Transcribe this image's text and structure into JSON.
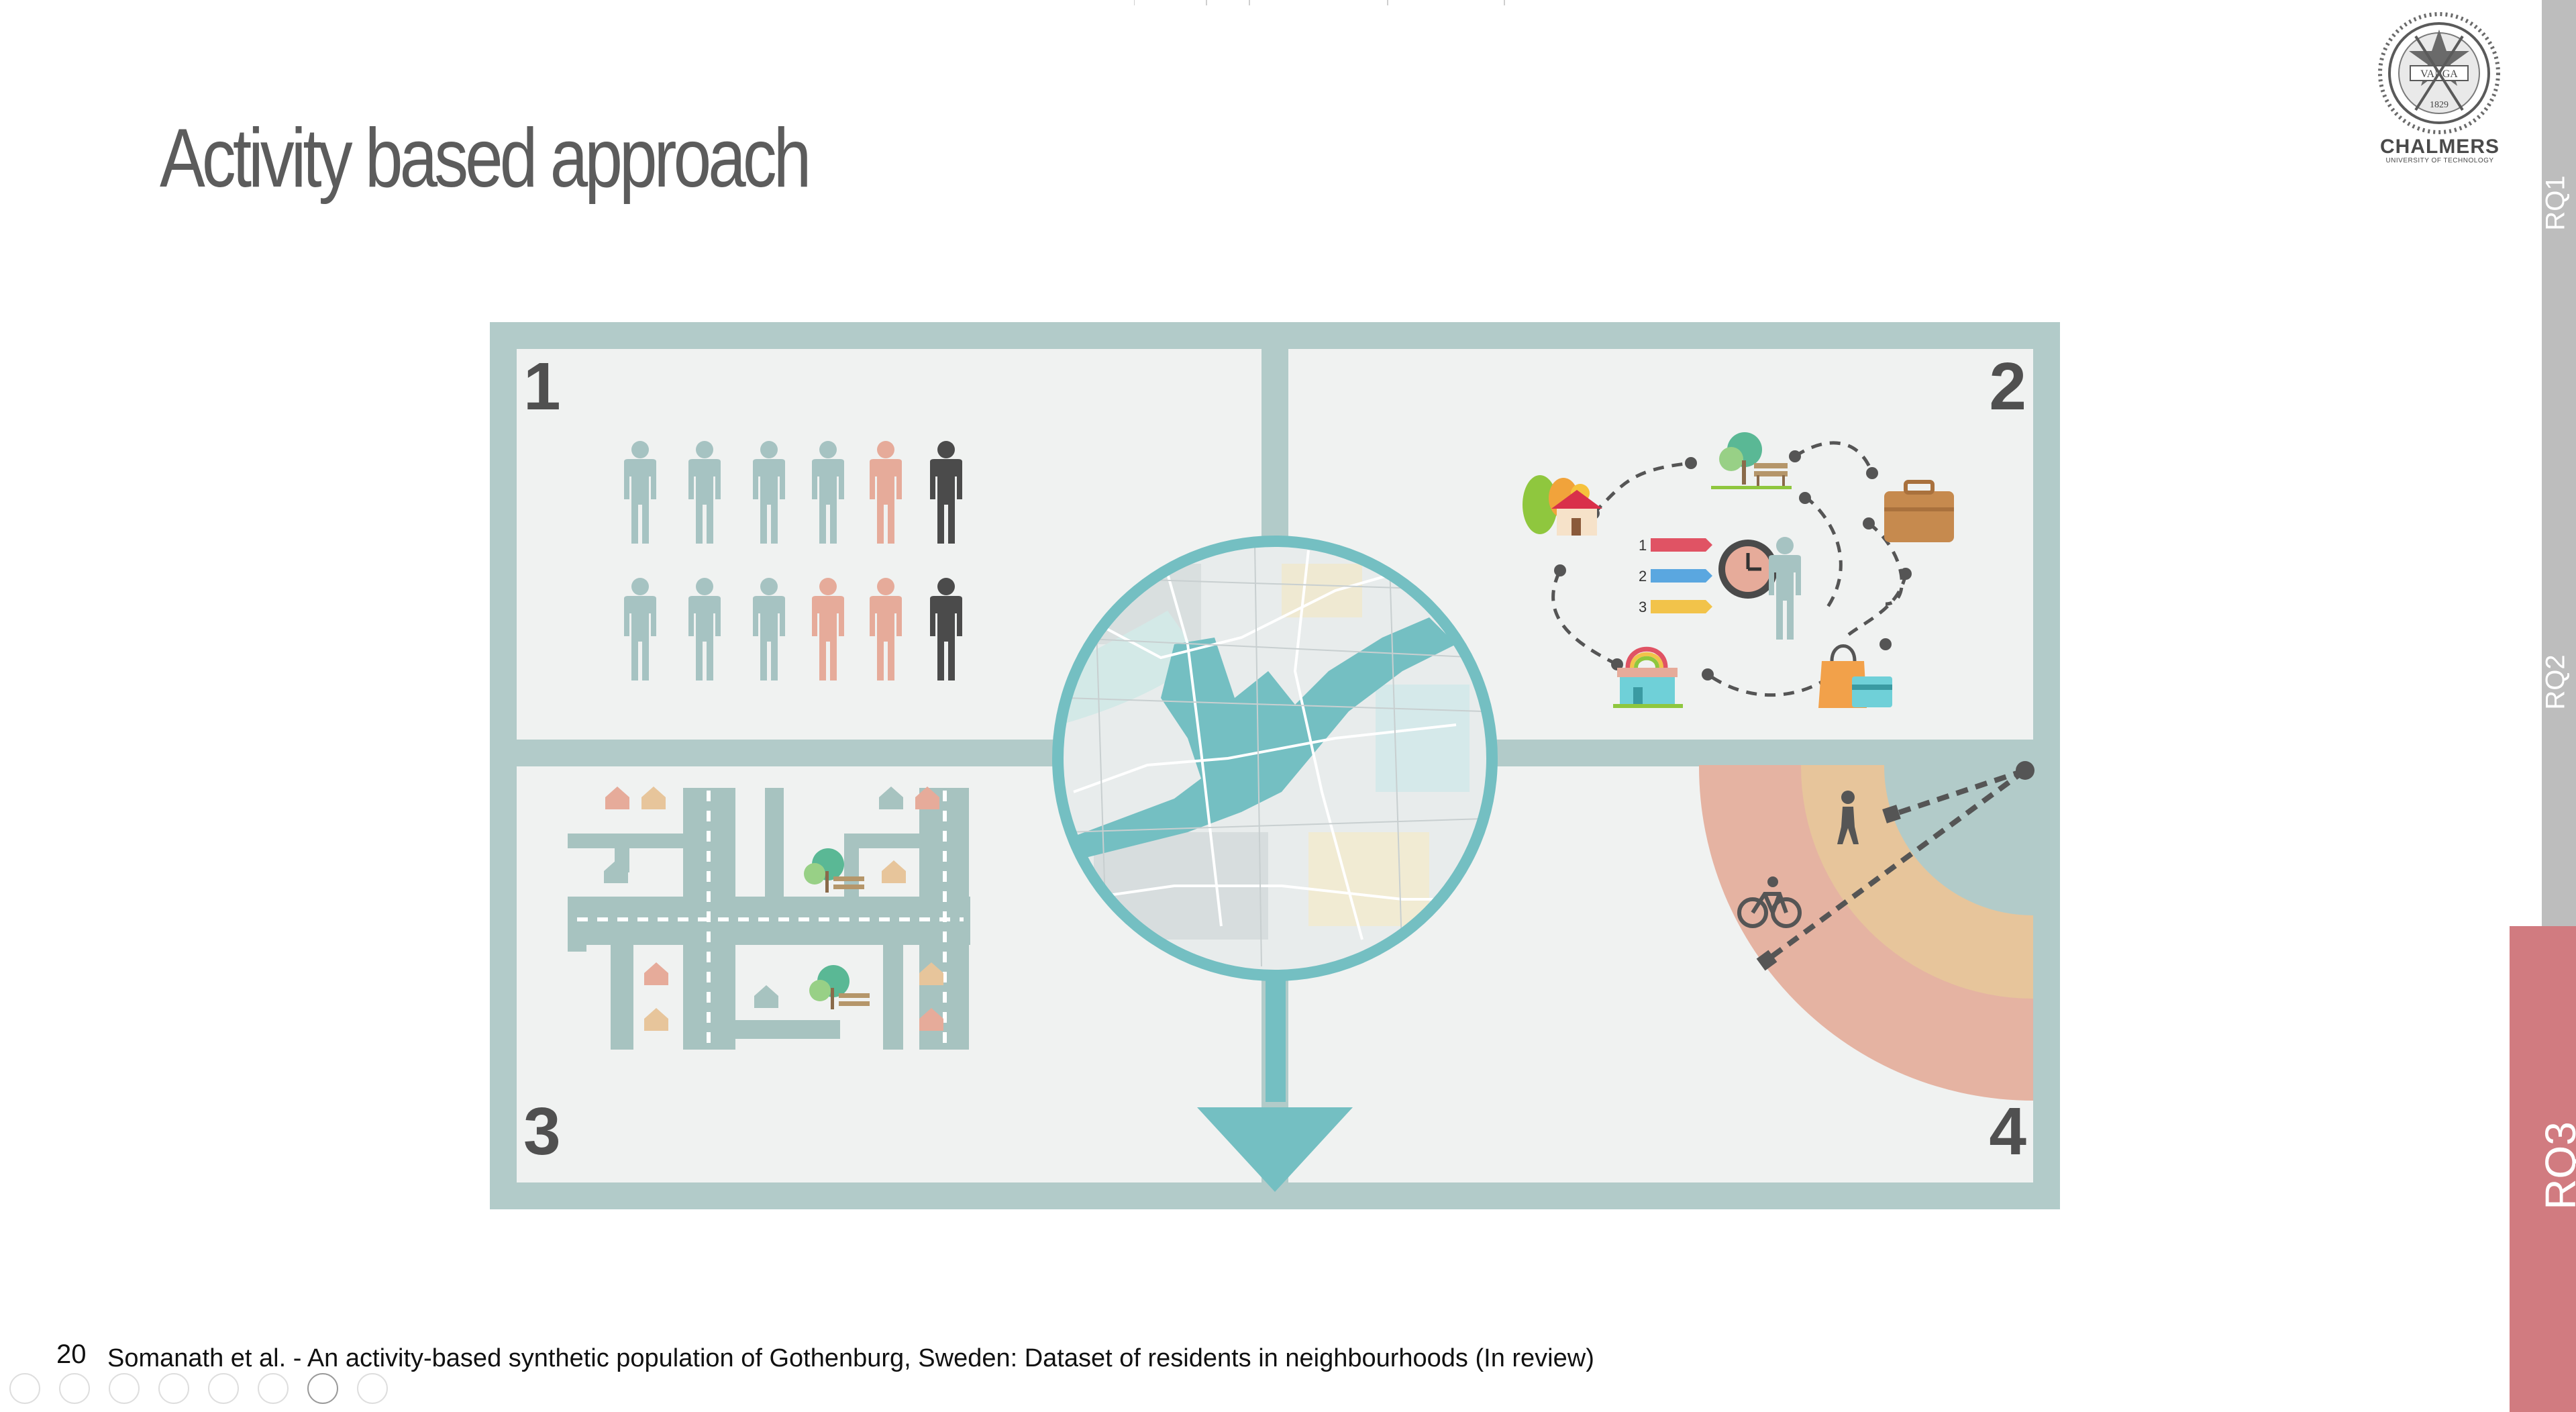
{
  "slide": {
    "title": "Activity based approach",
    "number": "20",
    "citation": "Somanath et al. - An activity-based synthetic population of Gothenburg, Sweden: Dataset of residents in neighbourhoods (In review)"
  },
  "logo": {
    "name": "CHALMERS",
    "subtitle": "UNIVERSITY OF TECHNOLOGY",
    "seal_text": "VANGA",
    "seal_year": "1829"
  },
  "sidebar": {
    "items": [
      {
        "label": "RQ1",
        "active": false
      },
      {
        "label": "RQ2",
        "active": false
      },
      {
        "label": "RQ3",
        "active": true
      }
    ],
    "colors": {
      "inactive": "#bdbdbd",
      "active": "#d17b80"
    }
  },
  "figure": {
    "panels": [
      {
        "number": "1",
        "content": "people-icons"
      },
      {
        "number": "2",
        "content": "activity-chain"
      },
      {
        "number": "3",
        "content": "street-network"
      },
      {
        "number": "4",
        "content": "accessibility-radius"
      }
    ],
    "agenda_items": [
      "1",
      "2",
      "3"
    ],
    "colors": {
      "frame": "#b2cbc9",
      "panel_bg": "#f0f2f1",
      "teal": "#74bfc2",
      "person_default": "#a6c3c2",
      "person_highlight": "#e6ab9a",
      "person_dark": "#4b4b4b",
      "ring_outer": "#e5b3a2",
      "ring_inner": "#e7c59b"
    }
  },
  "toolbar": {
    "buttons": [
      "previous-icon",
      "next-icon",
      "pen-icon",
      "slides-icon",
      "zoom-icon",
      "subtitles-icon",
      "camera-icon",
      "more-icon"
    ]
  }
}
